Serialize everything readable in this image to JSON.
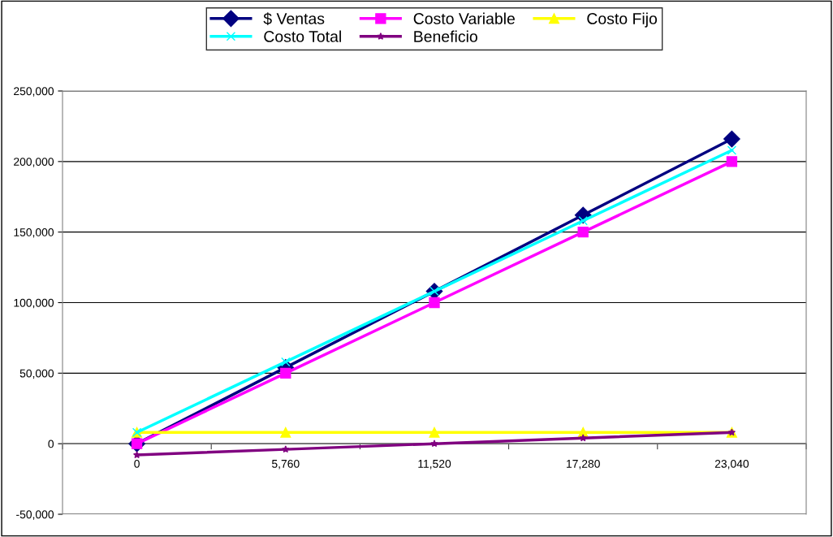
{
  "chart_data": {
    "type": "line",
    "categories": [
      "0",
      "5,760",
      "11,520",
      "17,280",
      "23,040"
    ],
    "series": [
      {
        "name": "$ Ventas",
        "color": "#000080",
        "marker": "diamond",
        "values": [
          0,
          54000,
          108000,
          162000,
          216000
        ]
      },
      {
        "name": "Costo Variable",
        "color": "#ff00ff",
        "marker": "square",
        "values": [
          0,
          50000,
          100000,
          150000,
          200000
        ]
      },
      {
        "name": "Costo Fijo",
        "color": "#ffff00",
        "marker": "triangle",
        "values": [
          8000,
          8000,
          8000,
          8000,
          8000
        ]
      },
      {
        "name": "Costo Total",
        "color": "#00ffff",
        "marker": "cross",
        "values": [
          8000,
          58000,
          108000,
          158000,
          208000
        ]
      },
      {
        "name": "Beneficio",
        "color": "#800080",
        "marker": "star",
        "values": [
          -8000,
          -4000,
          0,
          4000,
          8000
        ]
      }
    ],
    "ylim": [
      -50000,
      250000
    ],
    "yticks": [
      {
        "value": -50000,
        "label": "-50,000"
      },
      {
        "value": 0,
        "label": "0"
      },
      {
        "value": 50000,
        "label": "50,000"
      },
      {
        "value": 100000,
        "label": "100,000"
      },
      {
        "value": 150000,
        "label": "150,000"
      },
      {
        "value": 200000,
        "label": "200,000"
      },
      {
        "value": 250000,
        "label": "250,000"
      }
    ],
    "grid": "y",
    "legend": "top"
  }
}
